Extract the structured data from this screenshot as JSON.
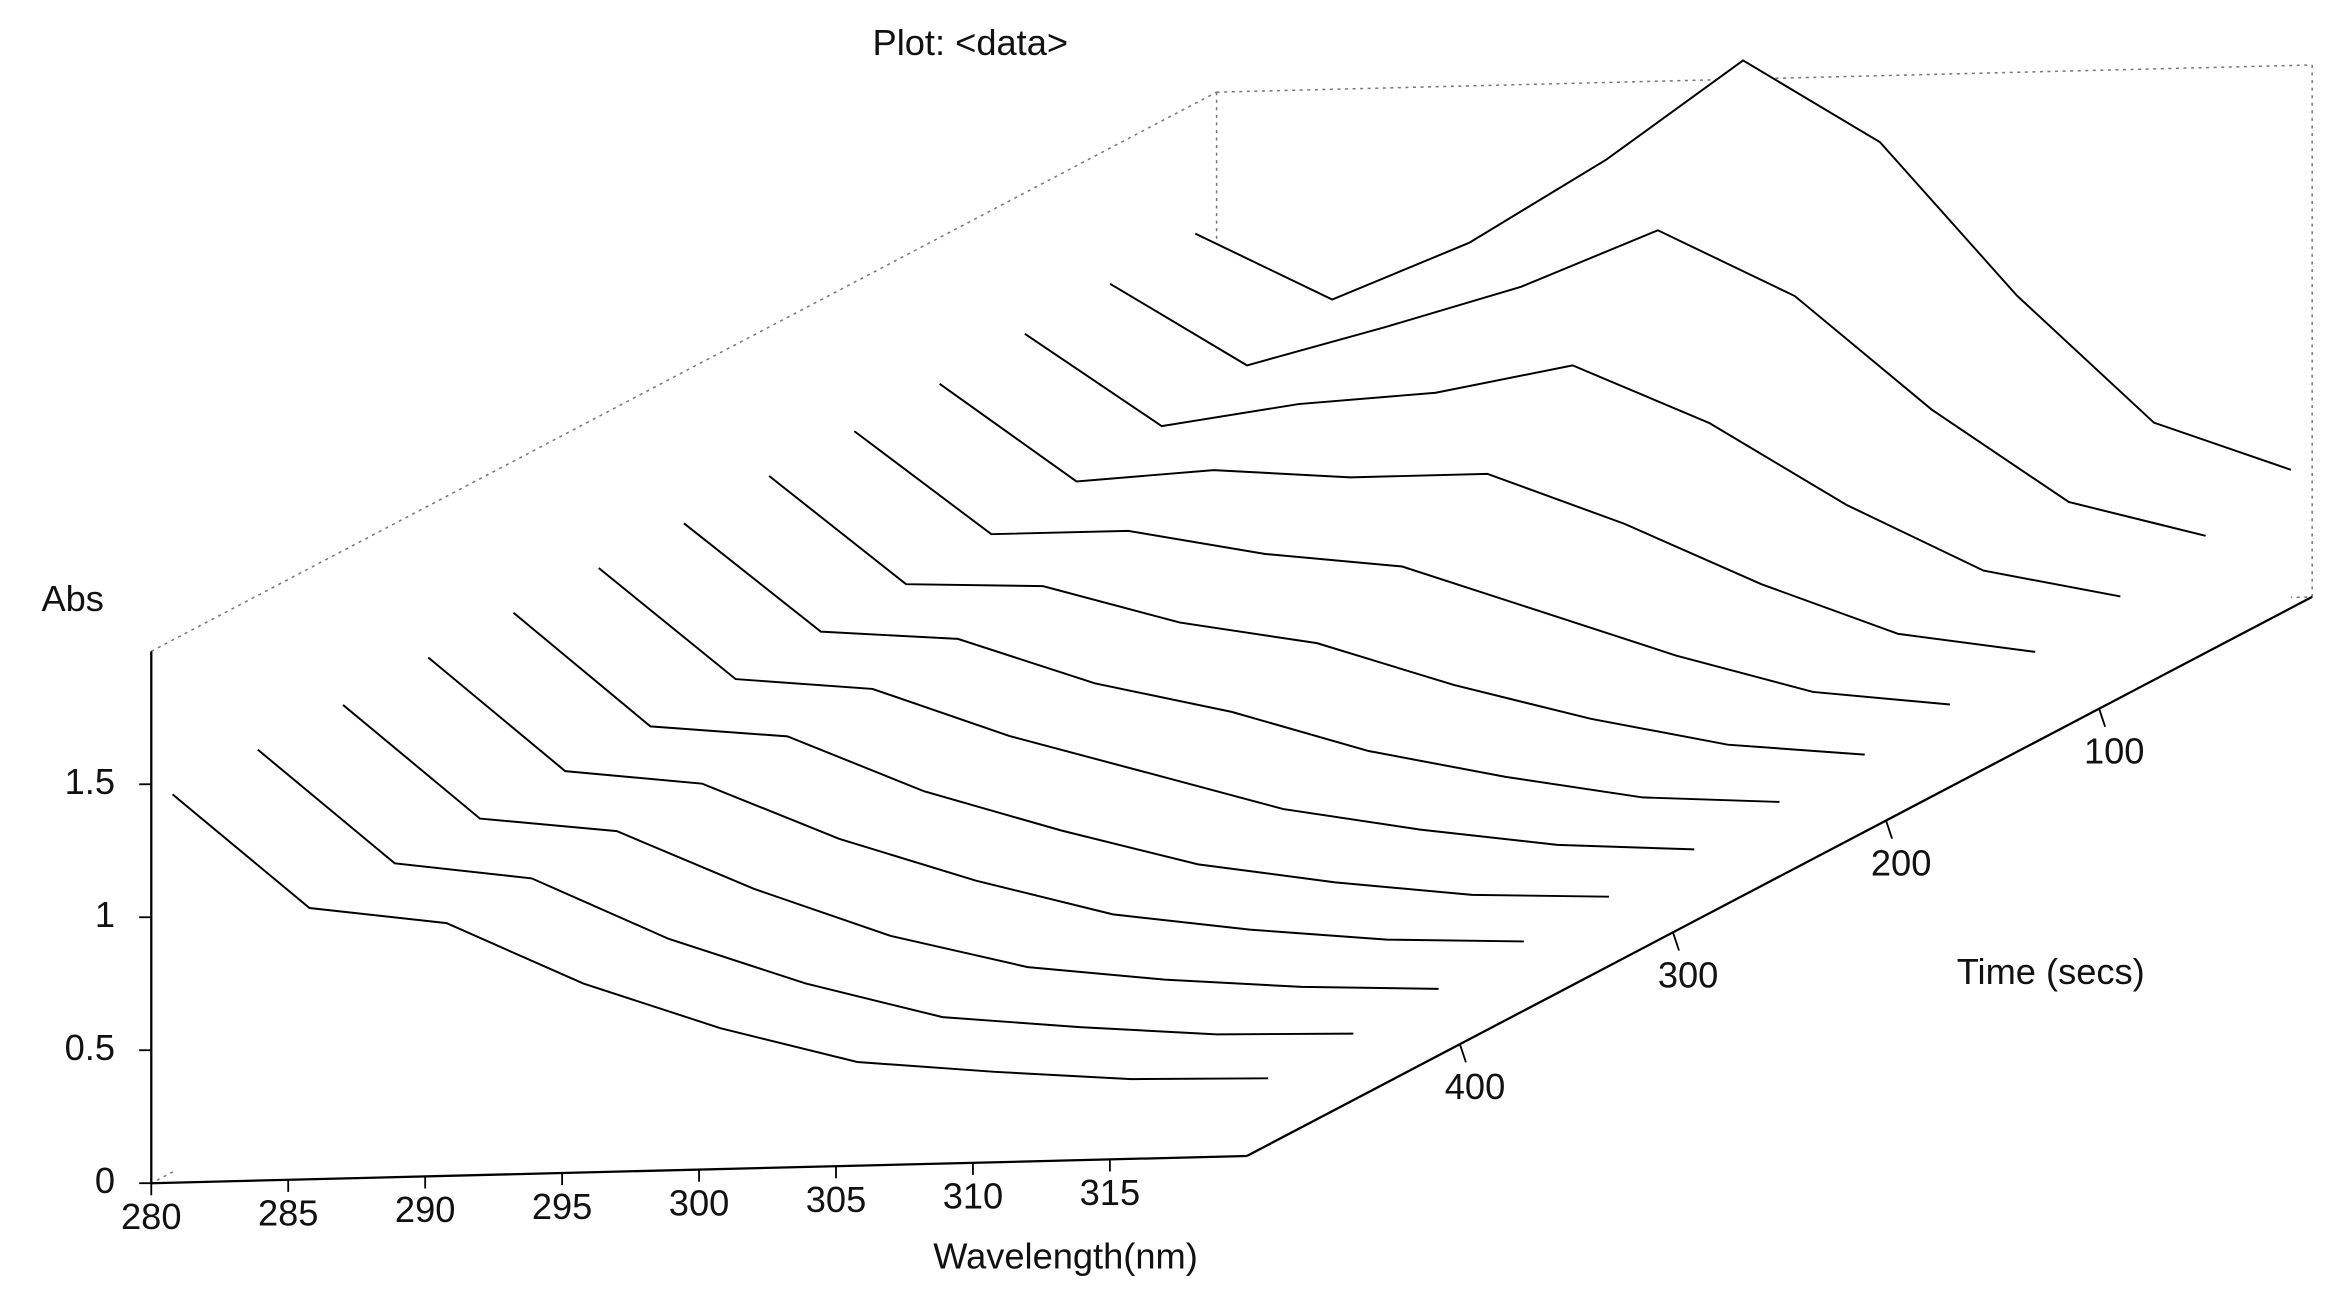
{
  "chart_data": {
    "type": "waterfall3d",
    "title": "Plot: <data>",
    "x_label": "Wavelength(nm)",
    "y_label": "Time (secs)",
    "z_label": "Abs",
    "x": [
      280,
      285,
      290,
      295,
      300,
      305,
      310,
      315,
      320
    ],
    "xlim": [
      280,
      320
    ],
    "xticks": [
      280,
      285,
      290,
      295,
      300,
      305,
      310,
      315
    ],
    "ylim": [
      0,
      500
    ],
    "yticks": [
      100,
      200,
      300,
      400
    ],
    "zlim": [
      0,
      2
    ],
    "zticks": [
      0,
      0.5,
      1,
      1.5
    ],
    "color": "#000000",
    "times": [
      10,
      50,
      90,
      130,
      170,
      210,
      250,
      290,
      330,
      370,
      410,
      450,
      490
    ],
    "values": [
      [
        1.51,
        1.25,
        1.45,
        1.75,
        2.11,
        1.79,
        1.2,
        0.71,
        0.52
      ],
      [
        1.49,
        1.17,
        1.3,
        1.44,
        1.64,
        1.38,
        0.94,
        0.58,
        0.44
      ],
      [
        1.47,
        1.11,
        1.18,
        1.21,
        1.3,
        1.07,
        0.75,
        0.49,
        0.38
      ],
      [
        1.45,
        1.07,
        1.1,
        1.06,
        1.06,
        0.86,
        0.62,
        0.42,
        0.34
      ],
      [
        1.44,
        1.04,
        1.04,
        0.94,
        0.88,
        0.7,
        0.52,
        0.37,
        0.31
      ],
      [
        1.44,
        1.02,
        1.0,
        0.85,
        0.76,
        0.59,
        0.45,
        0.34,
        0.29
      ],
      [
        1.43,
        1.01,
        0.97,
        0.79,
        0.67,
        0.51,
        0.4,
        0.31,
        0.28
      ],
      [
        1.43,
        1.0,
        0.95,
        0.76,
        0.61,
        0.46,
        0.37,
        0.3,
        0.27
      ],
      [
        1.43,
        0.99,
        0.94,
        0.72,
        0.56,
        0.42,
        0.34,
        0.28,
        0.26
      ],
      [
        1.43,
        0.99,
        0.93,
        0.71,
        0.54,
        0.4,
        0.33,
        0.28,
        0.26
      ],
      [
        1.42,
        0.98,
        0.92,
        0.69,
        0.5,
        0.37,
        0.31,
        0.27,
        0.25
      ],
      [
        1.42,
        0.98,
        0.91,
        0.67,
        0.49,
        0.35,
        0.3,
        0.26,
        0.25
      ],
      [
        1.42,
        0.98,
        0.91,
        0.67,
        0.49,
        0.35,
        0.3,
        0.26,
        0.25
      ]
    ]
  }
}
